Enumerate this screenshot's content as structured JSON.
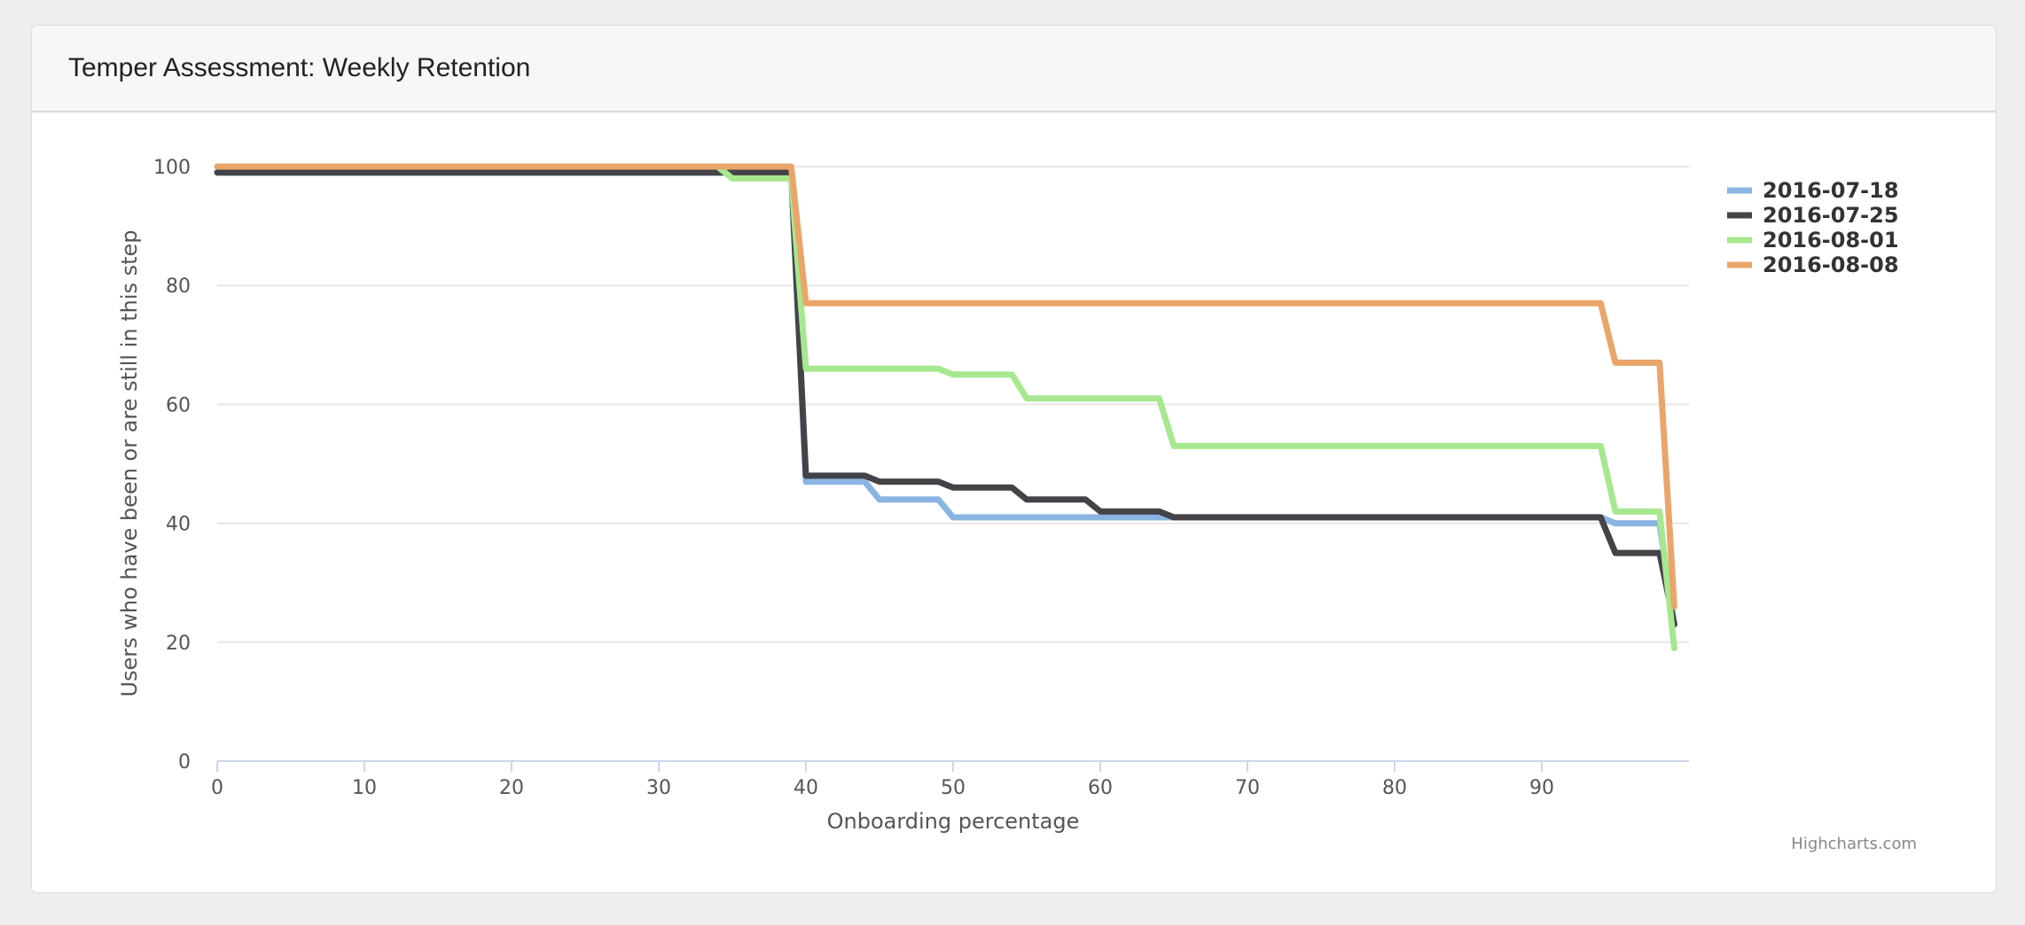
{
  "header": {
    "title": "Temper Assessment: Weekly Retention"
  },
  "credits": "Highcharts.com",
  "chart_data": {
    "type": "line",
    "title": "Temper Assessment: Weekly Retention",
    "xlabel": "Onboarding percentage",
    "ylabel": "Users who have been or are still in this step",
    "xlim": [
      0,
      100
    ],
    "ylim": [
      0,
      100
    ],
    "xticks": [
      0,
      10,
      20,
      30,
      40,
      50,
      60,
      70,
      80,
      90
    ],
    "yticks": [
      0,
      20,
      40,
      60,
      80,
      100
    ],
    "grid": true,
    "legend_placement": "top-right",
    "series": [
      {
        "name": "2016-07-18",
        "color": "#8ab4e3",
        "points": [
          [
            0,
            99
          ],
          [
            39,
            99
          ],
          [
            40,
            47
          ],
          [
            44,
            47
          ],
          [
            45,
            44
          ],
          [
            49,
            44
          ],
          [
            50,
            41
          ],
          [
            94,
            41
          ],
          [
            95,
            40
          ],
          [
            98,
            40
          ],
          [
            99,
            23
          ]
        ]
      },
      {
        "name": "2016-07-25",
        "color": "#434348",
        "points": [
          [
            0,
            99
          ],
          [
            39,
            99
          ],
          [
            40,
            48
          ],
          [
            44,
            48
          ],
          [
            45,
            47
          ],
          [
            49,
            47
          ],
          [
            50,
            46
          ],
          [
            54,
            46
          ],
          [
            55,
            44
          ],
          [
            59,
            44
          ],
          [
            60,
            42
          ],
          [
            64,
            42
          ],
          [
            65,
            41
          ],
          [
            94,
            41
          ],
          [
            95,
            35
          ],
          [
            98,
            35
          ],
          [
            99,
            23
          ]
        ]
      },
      {
        "name": "2016-08-01",
        "color": "#a6e88f",
        "points": [
          [
            0,
            100
          ],
          [
            34,
            100
          ],
          [
            35,
            98
          ],
          [
            39,
            98
          ],
          [
            40,
            66
          ],
          [
            49,
            66
          ],
          [
            50,
            65
          ],
          [
            54,
            65
          ],
          [
            55,
            61
          ],
          [
            64,
            61
          ],
          [
            65,
            53
          ],
          [
            94,
            53
          ],
          [
            95,
            42
          ],
          [
            98,
            42
          ],
          [
            99,
            19
          ]
        ]
      },
      {
        "name": "2016-08-08",
        "color": "#eaa56a",
        "points": [
          [
            0,
            100
          ],
          [
            39,
            100
          ],
          [
            40,
            77
          ],
          [
            94,
            77
          ],
          [
            95,
            67
          ],
          [
            98,
            67
          ],
          [
            99,
            26
          ]
        ]
      }
    ]
  }
}
